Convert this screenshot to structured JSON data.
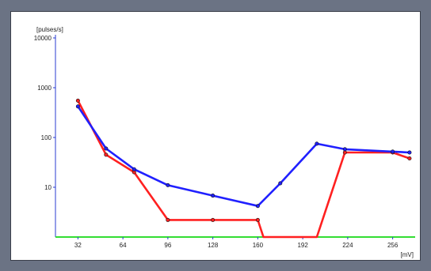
{
  "chart_data": {
    "type": "line",
    "ylabel": "[pulses/s]",
    "xlabel": "[mV]",
    "y_scale": "log",
    "ylim": [
      1,
      10000
    ],
    "xlim": [
      16,
      272
    ],
    "x_ticks": [
      32,
      64,
      96,
      128,
      160,
      192,
      224,
      256
    ],
    "y_ticks": [
      10,
      100,
      1000,
      10000
    ],
    "baseline_color": "#33dd33",
    "series": [
      {
        "color": "#ff2020",
        "points": [
          [
            32,
            550
          ],
          [
            52,
            45
          ],
          [
            72,
            20
          ],
          [
            96,
            2.2
          ],
          [
            128,
            2.2
          ],
          [
            160,
            2.2
          ],
          [
            164,
            0.5
          ],
          [
            202,
            0.5
          ],
          [
            222,
            50
          ],
          [
            256,
            50
          ],
          [
            268,
            38
          ]
        ]
      },
      {
        "color": "#2020ff",
        "points": [
          [
            32,
            420
          ],
          [
            52,
            60
          ],
          [
            72,
            23
          ],
          [
            96,
            11
          ],
          [
            128,
            6.8
          ],
          [
            160,
            4.2
          ],
          [
            176,
            12
          ],
          [
            202,
            75
          ],
          [
            222,
            58
          ],
          [
            256,
            52
          ],
          [
            268,
            50
          ]
        ]
      }
    ]
  }
}
